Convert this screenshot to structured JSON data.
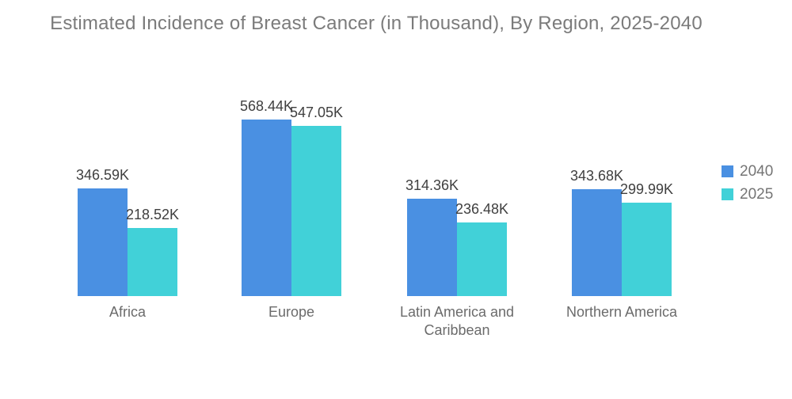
{
  "chart_data": {
    "type": "bar",
    "title": "Estimated Incidence of Breast Cancer (in Thousand), By Region, 2025-2040",
    "categories": [
      "Africa",
      "Europe",
      "Latin America and Caribbean",
      "Northern America"
    ],
    "series": [
      {
        "name": "2040",
        "color": "#4A90E2",
        "values": [
          346.59,
          568.44,
          314.36,
          343.68
        ],
        "labels": [
          "346.59K",
          "568.44K",
          "314.36K",
          "343.68K"
        ]
      },
      {
        "name": "2025",
        "color": "#41D1D8",
        "values": [
          218.52,
          547.05,
          236.48,
          299.99
        ],
        "labels": [
          "218.52K",
          "547.05K",
          "236.48K",
          "299.99K"
        ]
      }
    ],
    "value_suffix": "K",
    "ylim": [
      0,
      600
    ],
    "grid": false,
    "axes_visible": false,
    "legend_position": "right",
    "data_label_color": "#3F3F3F",
    "category_label_color": "#6B6B6B",
    "title_color": "#7B7B7B",
    "legend_text_color": "#757575",
    "background_color": "#FFFFFF"
  }
}
